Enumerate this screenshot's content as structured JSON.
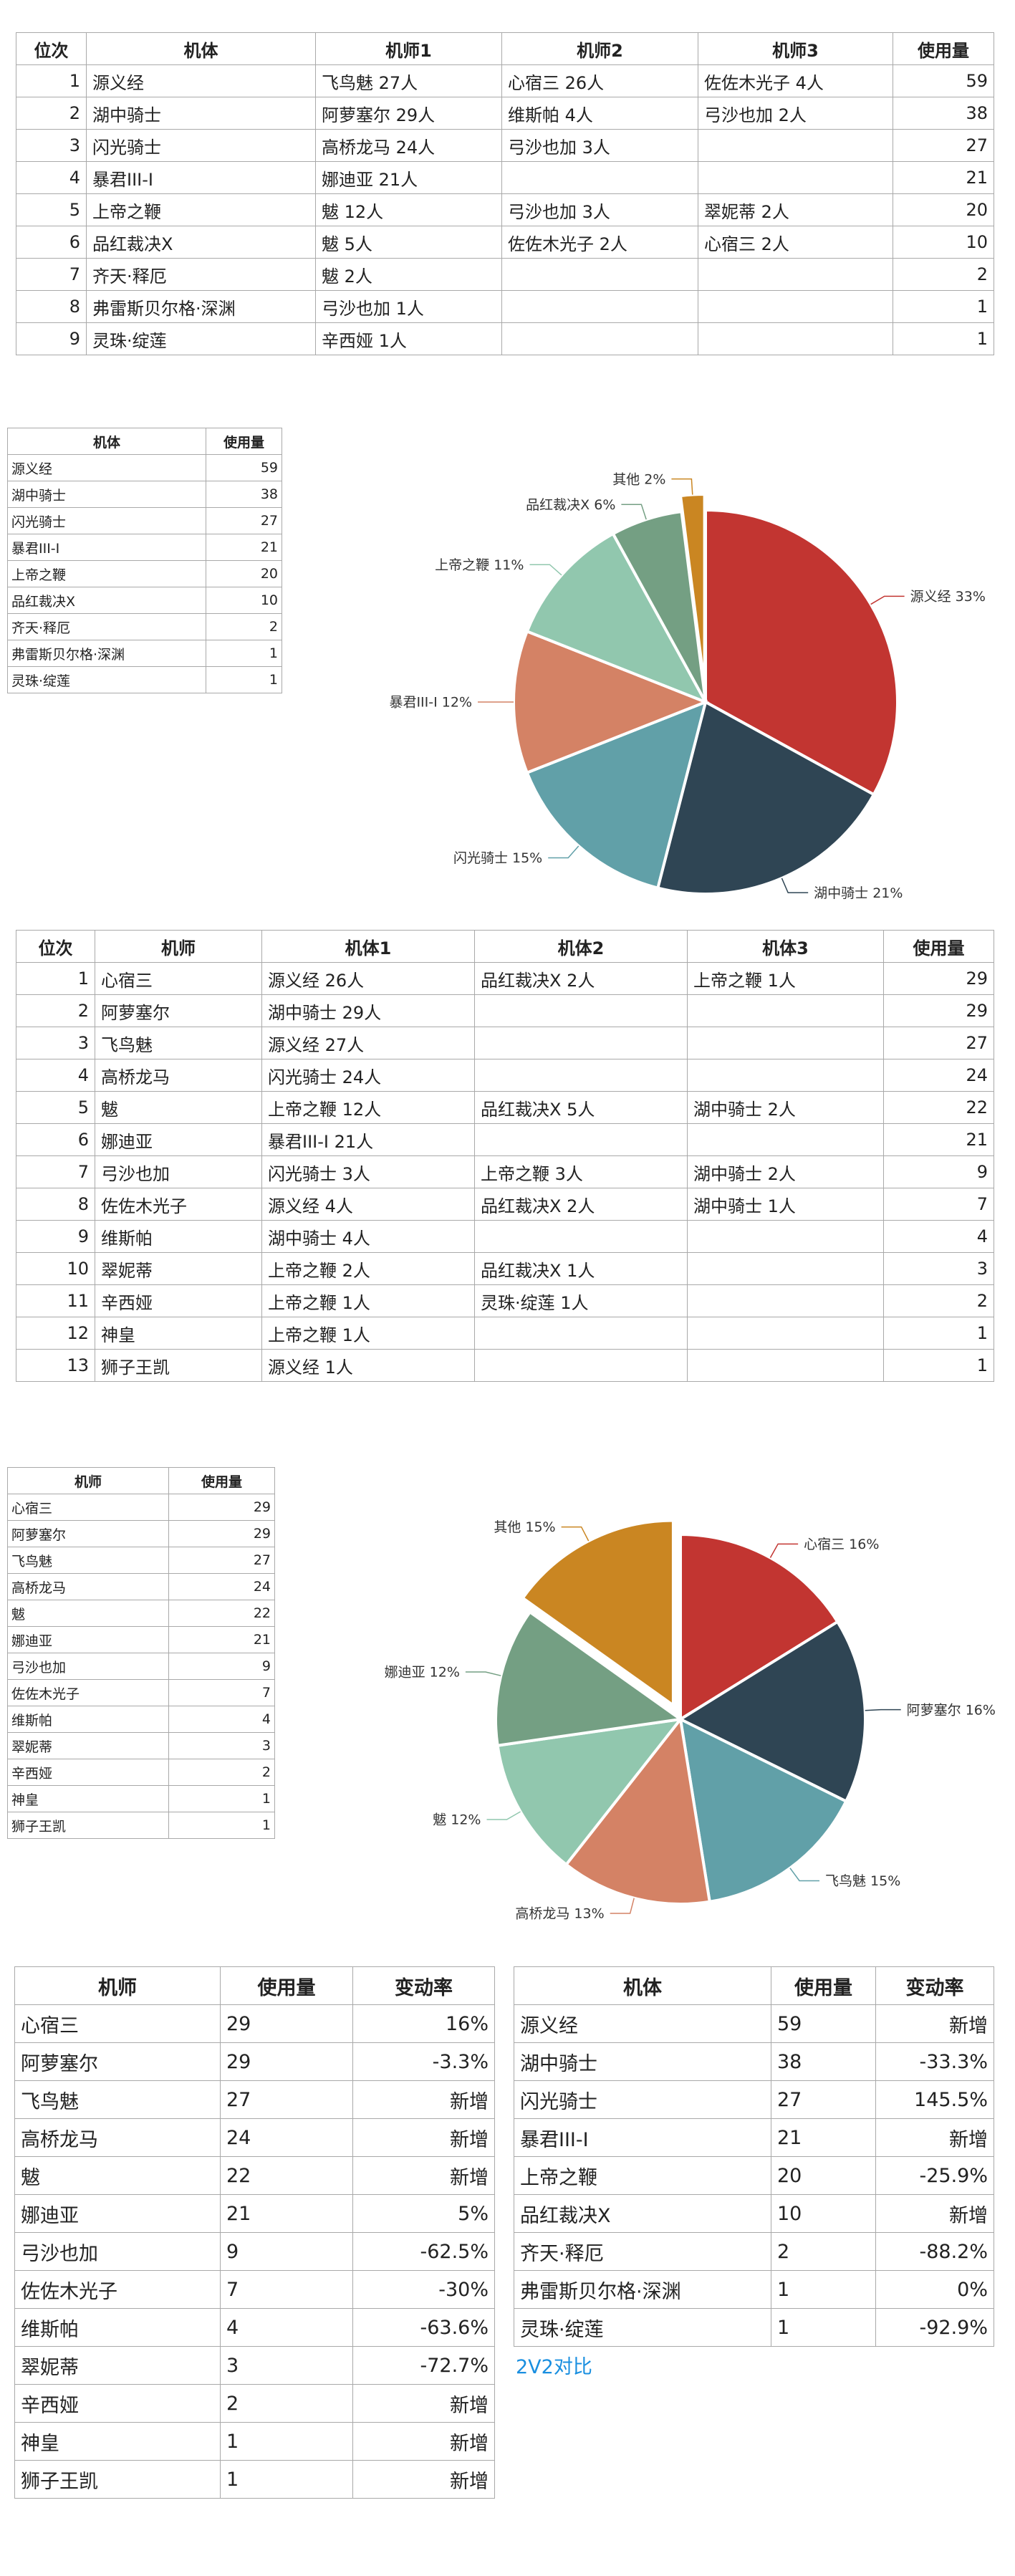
{
  "table1": {
    "headers": [
      "位次",
      "机体",
      "机师1",
      "机师2",
      "机师3",
      "使用量"
    ],
    "rows": [
      [
        "1",
        "源义经",
        "飞鸟魅 27人",
        "心宿三 26人",
        "佐佐木光子 4人",
        "59"
      ],
      [
        "2",
        "湖中骑士",
        "阿萝塞尔 29人",
        "维斯帕 4人",
        "弓沙也加 2人",
        "38"
      ],
      [
        "3",
        "闪光骑士",
        "高桥龙马 24人",
        "弓沙也加 3人",
        "",
        "27"
      ],
      [
        "4",
        "暴君III-I",
        "娜迪亚 21人",
        "",
        "",
        "21"
      ],
      [
        "5",
        "上帝之鞭",
        "魃 12人",
        "弓沙也加 3人",
        "翠妮蒂 2人",
        "20"
      ],
      [
        "6",
        "品红裁决X",
        "魃 5人",
        "佐佐木光子 2人",
        "心宿三 2人",
        "10"
      ],
      [
        "7",
        "齐天·释厄",
        "魃 2人",
        "",
        "",
        "2"
      ],
      [
        "8",
        "弗雷斯贝尔格·深渊",
        "弓沙也加 1人",
        "",
        "",
        "1"
      ],
      [
        "9",
        "灵珠·绽莲",
        "辛西娅 1人",
        "",
        "",
        "1"
      ]
    ]
  },
  "table2": {
    "headers": [
      "位次",
      "机师",
      "机体1",
      "机体2",
      "机体3",
      "使用量"
    ],
    "rows": [
      [
        "1",
        "心宿三",
        "源义经 26人",
        "品红裁决X 2人",
        "上帝之鞭 1人",
        "29"
      ],
      [
        "2",
        "阿萝塞尔",
        "湖中骑士 29人",
        "",
        "",
        "29"
      ],
      [
        "3",
        "飞鸟魅",
        "源义经 27人",
        "",
        "",
        "27"
      ],
      [
        "4",
        "高桥龙马",
        "闪光骑士 24人",
        "",
        "",
        "24"
      ],
      [
        "5",
        "魃",
        "上帝之鞭 12人",
        "品红裁决X 5人",
        "湖中骑士 2人",
        "22"
      ],
      [
        "6",
        "娜迪亚",
        "暴君III-I 21人",
        "",
        "",
        "21"
      ],
      [
        "7",
        "弓沙也加",
        "闪光骑士 3人",
        "上帝之鞭 3人",
        "湖中骑士 2人",
        "9"
      ],
      [
        "8",
        "佐佐木光子",
        "源义经 4人",
        "品红裁决X 2人",
        "湖中骑士 1人",
        "7"
      ],
      [
        "9",
        "维斯帕",
        "湖中骑士 4人",
        "",
        "",
        "4"
      ],
      [
        "10",
        "翠妮蒂",
        "上帝之鞭 2人",
        "品红裁决X 1人",
        "",
        "3"
      ],
      [
        "11",
        "辛西娅",
        "上帝之鞭 1人",
        "灵珠·绽莲 1人",
        "",
        "2"
      ],
      [
        "12",
        "神皇",
        "上帝之鞭 1人",
        "",
        "",
        "1"
      ],
      [
        "13",
        "狮子王凯",
        "源义经 1人",
        "",
        "",
        "1"
      ]
    ]
  },
  "table3": {
    "headers": [
      "机师",
      "使用量",
      "变动率"
    ],
    "rows": [
      [
        "心宿三",
        "29",
        "16%"
      ],
      [
        "阿萝塞尔",
        "29",
        "-3.3%"
      ],
      [
        "飞鸟魅",
        "27",
        "新增"
      ],
      [
        "高桥龙马",
        "24",
        "新增"
      ],
      [
        "魃",
        "22",
        "新增"
      ],
      [
        "娜迪亚",
        "21",
        "5%"
      ],
      [
        "弓沙也加",
        "9",
        "-62.5%"
      ],
      [
        "佐佐木光子",
        "7",
        "-30%"
      ],
      [
        "维斯帕",
        "4",
        "-63.6%"
      ],
      [
        "翠妮蒂",
        "3",
        "-72.7%"
      ],
      [
        "辛西娅",
        "2",
        "新增"
      ],
      [
        "神皇",
        "1",
        "新增"
      ],
      [
        "狮子王凯",
        "1",
        "新增"
      ]
    ]
  },
  "table4": {
    "headers": [
      "机体",
      "使用量",
      "变动率"
    ],
    "rows": [
      [
        "源义经",
        "59",
        "新增"
      ],
      [
        "湖中骑士",
        "38",
        "-33.3%"
      ],
      [
        "闪光骑士",
        "27",
        "145.5%"
      ],
      [
        "暴君III-I",
        "21",
        "新增"
      ],
      [
        "上帝之鞭",
        "20",
        "-25.9%"
      ],
      [
        "品红裁决X",
        "10",
        "新增"
      ],
      [
        "齐天·释厄",
        "2",
        "-88.2%"
      ],
      [
        "弗雷斯贝尔格·深渊",
        "1",
        "0%"
      ],
      [
        "灵珠·绽莲",
        "1",
        "-92.9%"
      ]
    ]
  },
  "link_text": "2V2对比",
  "chart_data": [
    {
      "type": "table",
      "headers": [
        "机体",
        "使用量"
      ],
      "rows": [
        [
          "源义经",
          "59"
        ],
        [
          "湖中骑士",
          "38"
        ],
        [
          "闪光骑士",
          "27"
        ],
        [
          "暴君III-I",
          "21"
        ],
        [
          "上帝之鞭",
          "20"
        ],
        [
          "品红裁决X",
          "10"
        ],
        [
          "齐天·释厄",
          "2"
        ],
        [
          "弗雷斯贝尔格·深渊",
          "1"
        ],
        [
          "灵珠·绽莲",
          "1"
        ]
      ]
    },
    {
      "type": "pie",
      "title": "",
      "categories": [
        "源义经",
        "湖中骑士",
        "闪光骑士",
        "暴君III-I",
        "上帝之鞭",
        "品红裁决X",
        "其他"
      ],
      "values": [
        33,
        21,
        15,
        12,
        11,
        6,
        2
      ],
      "labels": [
        "源义经 33%",
        "湖中骑士 21%",
        "闪光骑士 15%",
        "暴君III-I 12%",
        "上帝之鞭 11%",
        "品红裁决X 6%",
        "其他 2%"
      ],
      "colors": [
        "#c23531",
        "#2f4554",
        "#61a0a8",
        "#d48265",
        "#91c7ae",
        "#749f83",
        "#ca8622"
      ],
      "exploded": "其他"
    },
    {
      "type": "table",
      "headers": [
        "机师",
        "使用量"
      ],
      "rows": [
        [
          "心宿三",
          "29"
        ],
        [
          "阿萝塞尔",
          "29"
        ],
        [
          "飞鸟魅",
          "27"
        ],
        [
          "高桥龙马",
          "24"
        ],
        [
          "魃",
          "22"
        ],
        [
          "娜迪亚",
          "21"
        ],
        [
          "弓沙也加",
          "9"
        ],
        [
          "佐佐木光子",
          "7"
        ],
        [
          "维斯帕",
          "4"
        ],
        [
          "翠妮蒂",
          "3"
        ],
        [
          "辛西娅",
          "2"
        ],
        [
          "神皇",
          "1"
        ],
        [
          "狮子王凯",
          "1"
        ]
      ]
    },
    {
      "type": "pie",
      "title": "",
      "categories": [
        "心宿三",
        "阿萝塞尔",
        "飞鸟魅",
        "高桥龙马",
        "魃",
        "娜迪亚",
        "其他"
      ],
      "values": [
        16,
        16,
        15,
        13,
        12,
        12,
        15
      ],
      "labels": [
        "心宿三 16%",
        "阿萝塞尔 16%",
        "飞鸟魅 15%",
        "高桥龙马 13%",
        "魃 12%",
        "娜迪亚 12%",
        "其他 15%"
      ],
      "colors": [
        "#c23531",
        "#2f4554",
        "#61a0a8",
        "#d48265",
        "#91c7ae",
        "#749f83",
        "#ca8622"
      ],
      "exploded": "其他"
    }
  ]
}
